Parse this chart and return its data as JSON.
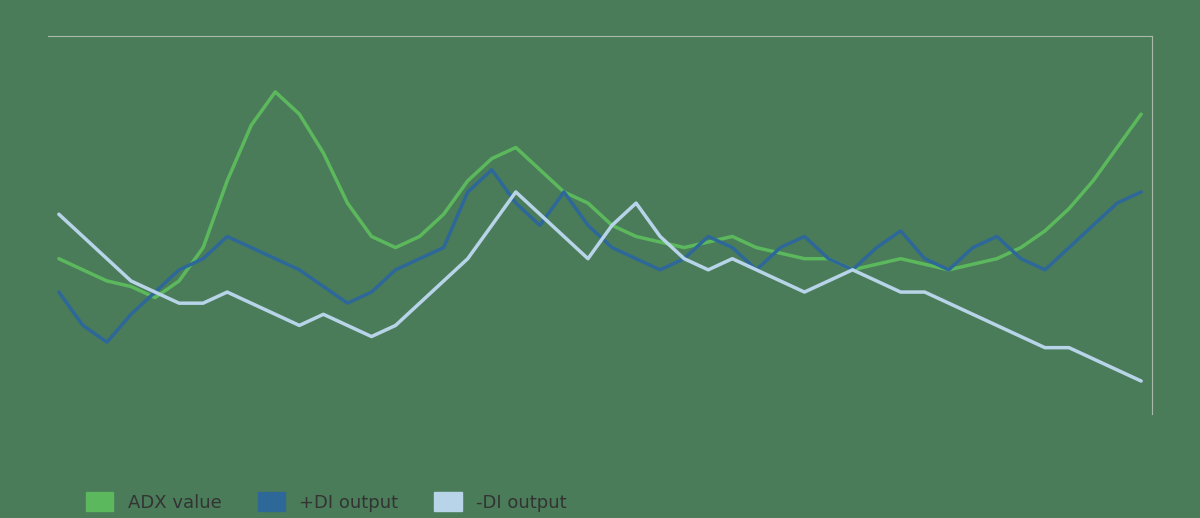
{
  "background_color": "#4a7c59",
  "plot_bg_color": "#4a7c59",
  "adx_color": "#5cb85c",
  "pdi_color": "#2d6899",
  "ndi_color": "#b8d4e8",
  "legend_labels": [
    "ADX value",
    "+DI output",
    "-DI output"
  ],
  "legend_text_color": "#333333",
  "line_width": 2.5,
  "adx_values": [
    38,
    36,
    34,
    33,
    31,
    34,
    40,
    52,
    62,
    68,
    64,
    57,
    48,
    42,
    40,
    42,
    46,
    52,
    56,
    58,
    54,
    50,
    48,
    44,
    42,
    41,
    40,
    41,
    42,
    40,
    39,
    38,
    38,
    36,
    37,
    38,
    37,
    36,
    37,
    38,
    40,
    43,
    47,
    52,
    58,
    64
  ],
  "pdi_values": [
    32,
    26,
    23,
    28,
    32,
    36,
    38,
    42,
    40,
    38,
    36,
    33,
    30,
    32,
    36,
    38,
    40,
    50,
    54,
    48,
    44,
    50,
    44,
    40,
    38,
    36,
    38,
    42,
    40,
    36,
    40,
    42,
    38,
    36,
    40,
    43,
    38,
    36,
    40,
    42,
    38,
    36,
    40,
    44,
    48,
    50
  ],
  "ndi_values": [
    46,
    42,
    38,
    34,
    32,
    30,
    30,
    32,
    30,
    28,
    26,
    28,
    26,
    24,
    26,
    30,
    34,
    38,
    44,
    50,
    46,
    42,
    38,
    44,
    48,
    42,
    38,
    36,
    38,
    36,
    34,
    32,
    34,
    36,
    34,
    32,
    32,
    30,
    28,
    26,
    24,
    22,
    22,
    20,
    18,
    16
  ],
  "ylim": [
    10,
    78
  ],
  "border_color": "#aabbaa",
  "border_linewidth": 0.8
}
